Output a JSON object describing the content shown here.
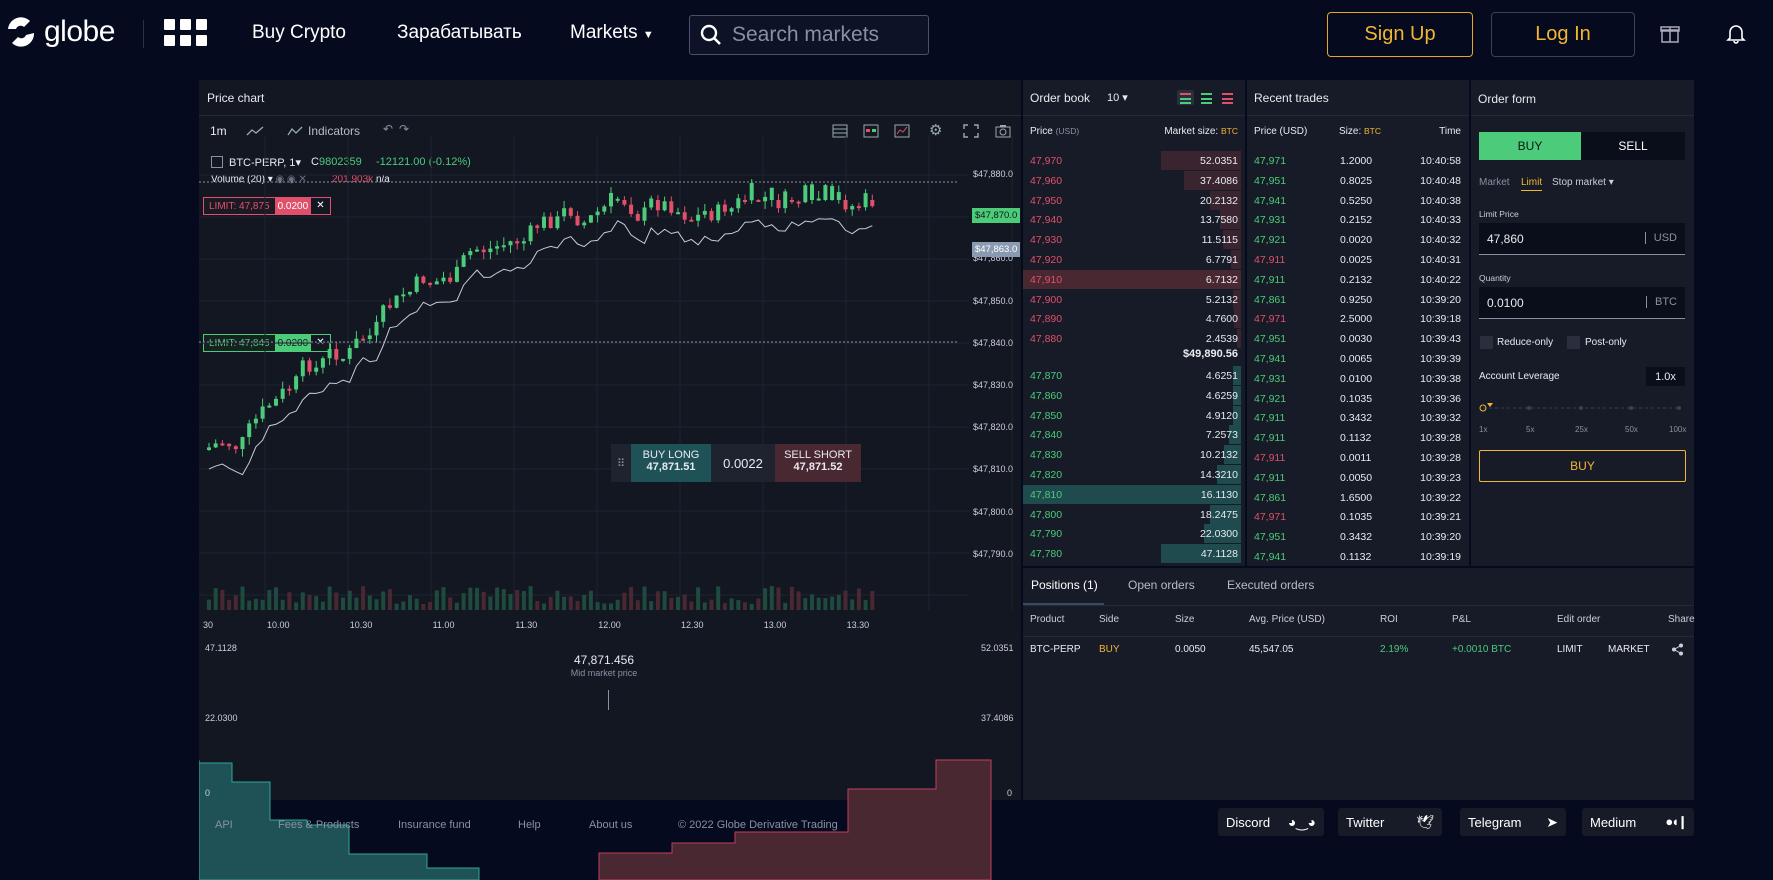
{
  "header": {
    "logo": "globe",
    "nav": [
      "Buy Crypto",
      "Зарабатывать",
      "Markets"
    ],
    "search_placeholder": "Search markets",
    "signup": "Sign Up",
    "login": "Log In"
  },
  "price_chart": {
    "title": "Price chart",
    "interval": "1m",
    "indicators": "Indicators",
    "symbol": "BTC-PERP, 1",
    "close_label": "C",
    "close_value": "9802359",
    "change": "-12121.00 (-0.12%)",
    "volume_label": "Volume (20)",
    "volume_value": "201.903k",
    "volume_na": "n/a",
    "limit_sell": "LIMIT: 47,875",
    "limit_sell_qty": "0.0200",
    "limit_buy": "LIMIT: 47,845",
    "limit_buy_qty": "0.0200",
    "price_tag_1": "$47,870.0",
    "price_tag_2": "$47,863.0",
    "y_ticks": [
      "$47,880.0",
      "$47,870.0",
      "$47,860.0",
      "$47,850.0",
      "$47,840.0",
      "$47,830.0",
      "$47,820.0",
      "$47,810.0",
      "$47,800.0",
      "$47,790.0"
    ],
    "x_ticks": [
      "30",
      "10.00",
      "10.30",
      "11.00",
      "11.30",
      "12.00",
      "12.30",
      "13.00",
      "13.30"
    ],
    "buy_long": "BUY LONG",
    "buy_price": "47,871.51",
    "spread": "0.0022",
    "sell_short": "SELL SHORT",
    "sell_price": "47,871.52"
  },
  "depth": {
    "left_top": "47.1128",
    "left_mid": "22.0300",
    "left_zero": "0",
    "right_top": "52.0351",
    "right_mid": "37.4086",
    "right_zero": "0",
    "mid_price": "47,871.456",
    "mid_label": "Mid market price"
  },
  "order_book": {
    "title": "Order book",
    "depth": "10",
    "col_price": "Price",
    "col_price_unit": "(USD)",
    "col_size": "Market size:",
    "col_size_unit": "BTC",
    "mid": "$49,890.56",
    "asks": [
      [
        "47,970",
        "52.0351"
      ],
      [
        "47,960",
        "37.4086"
      ],
      [
        "47,950",
        "20.2132"
      ],
      [
        "47,940",
        "13.7580"
      ],
      [
        "47,930",
        "11.5115"
      ],
      [
        "47,920",
        "6.7791"
      ],
      [
        "47,910",
        "6.7132"
      ],
      [
        "47,900",
        "5.2132"
      ],
      [
        "47,890",
        "4.7600"
      ],
      [
        "47,880",
        "2.4539"
      ]
    ],
    "bids": [
      [
        "47,870",
        "4.6251"
      ],
      [
        "47,860",
        "4.6259"
      ],
      [
        "47,850",
        "4.9120"
      ],
      [
        "47,840",
        "7.2573"
      ],
      [
        "47,830",
        "10.2132"
      ],
      [
        "47,820",
        "14.3210"
      ],
      [
        "47,810",
        "16.1130"
      ],
      [
        "47,800",
        "18.2475"
      ],
      [
        "47,790",
        "22.0300"
      ],
      [
        "47,780",
        "47.1128"
      ]
    ]
  },
  "recent_trades": {
    "title": "Recent trades",
    "col_price": "Price (USD)",
    "col_size": "Size:",
    "col_size_unit": "BTC",
    "col_time": "Time",
    "rows": [
      [
        "47,971",
        "1.2000",
        "10:40:58",
        "g"
      ],
      [
        "47,951",
        "0.8025",
        "10:40:48",
        "g"
      ],
      [
        "47,941",
        "0.5250",
        "10:40:38",
        "g"
      ],
      [
        "47,931",
        "0.2152",
        "10:40:33",
        "g"
      ],
      [
        "47,921",
        "0.0020",
        "10:40:32",
        "g"
      ],
      [
        "47,911",
        "0.0025",
        "10:40:31",
        "r"
      ],
      [
        "47,911",
        "0.2132",
        "10:40:22",
        "g"
      ],
      [
        "47,861",
        "0.9250",
        "10:39:20",
        "g"
      ],
      [
        "47,971",
        "2.5000",
        "10:39:18",
        "r"
      ],
      [
        "47,951",
        "0.0030",
        "10:39:43",
        "g"
      ],
      [
        "47,941",
        "0.0065",
        "10:39:39",
        "g"
      ],
      [
        "47,931",
        "0.0100",
        "10:39:38",
        "g"
      ],
      [
        "47,921",
        "0.1035",
        "10:39:36",
        "g"
      ],
      [
        "47,911",
        "0.3432",
        "10:39:32",
        "g"
      ],
      [
        "47,911",
        "0.1132",
        "10:39:28",
        "g"
      ],
      [
        "47,911",
        "0.0011",
        "10:39:28",
        "r"
      ],
      [
        "47,911",
        "0.0050",
        "10:39:23",
        "g"
      ],
      [
        "47,861",
        "1.6500",
        "10:39:22",
        "g"
      ],
      [
        "47,971",
        "0.1035",
        "10:39:21",
        "r"
      ],
      [
        "47,951",
        "0.3432",
        "10:39:20",
        "g"
      ],
      [
        "47,941",
        "0.1132",
        "10:39:19",
        "g"
      ]
    ]
  },
  "order_form": {
    "title": "Order form",
    "buy": "BUY",
    "sell": "SELL",
    "types": [
      "Market",
      "Limit",
      "Stop market"
    ],
    "limit_price_label": "Limit Price",
    "limit_price": "47,860",
    "limit_unit": "USD",
    "qty_label": "Quantity",
    "qty": "0.0100",
    "qty_unit": "BTC",
    "reduce_only": "Reduce-only",
    "post_only": "Post-only",
    "leverage_label": "Account Leverage",
    "leverage": "1.0x",
    "leverage_ticks": [
      "1x",
      "5x",
      "25x",
      "50x",
      "100x"
    ],
    "submit": "BUY"
  },
  "positions": {
    "tabs": [
      "Positions (1)",
      "Open orders",
      "Executed orders"
    ],
    "cols": [
      "Product",
      "Side",
      "Size",
      "Avg. Price (USD)",
      "ROI",
      "P&L",
      "Edit order",
      "Share"
    ],
    "row": {
      "product": "BTC-PERP",
      "side": "BUY",
      "size": "0.0050",
      "avg": "45,547.05",
      "roi": "2.19%",
      "pnl": "+0.0010 BTC",
      "limit": "LIMIT",
      "market": "MARKET"
    }
  },
  "footer": {
    "links": [
      "API",
      "Fees & Products",
      "Insurance fund",
      "Help",
      "About us",
      "© 2022 Globe Derivative Trading"
    ],
    "social": [
      "Discord",
      "Twitter",
      "Telegram",
      "Medium"
    ]
  },
  "colors": {
    "bg": "#050a1f",
    "panel": "#161b27",
    "green": "#4ccb7a",
    "red": "#e0506a",
    "gold": "#f2b632",
    "teal": "#1f5257"
  }
}
